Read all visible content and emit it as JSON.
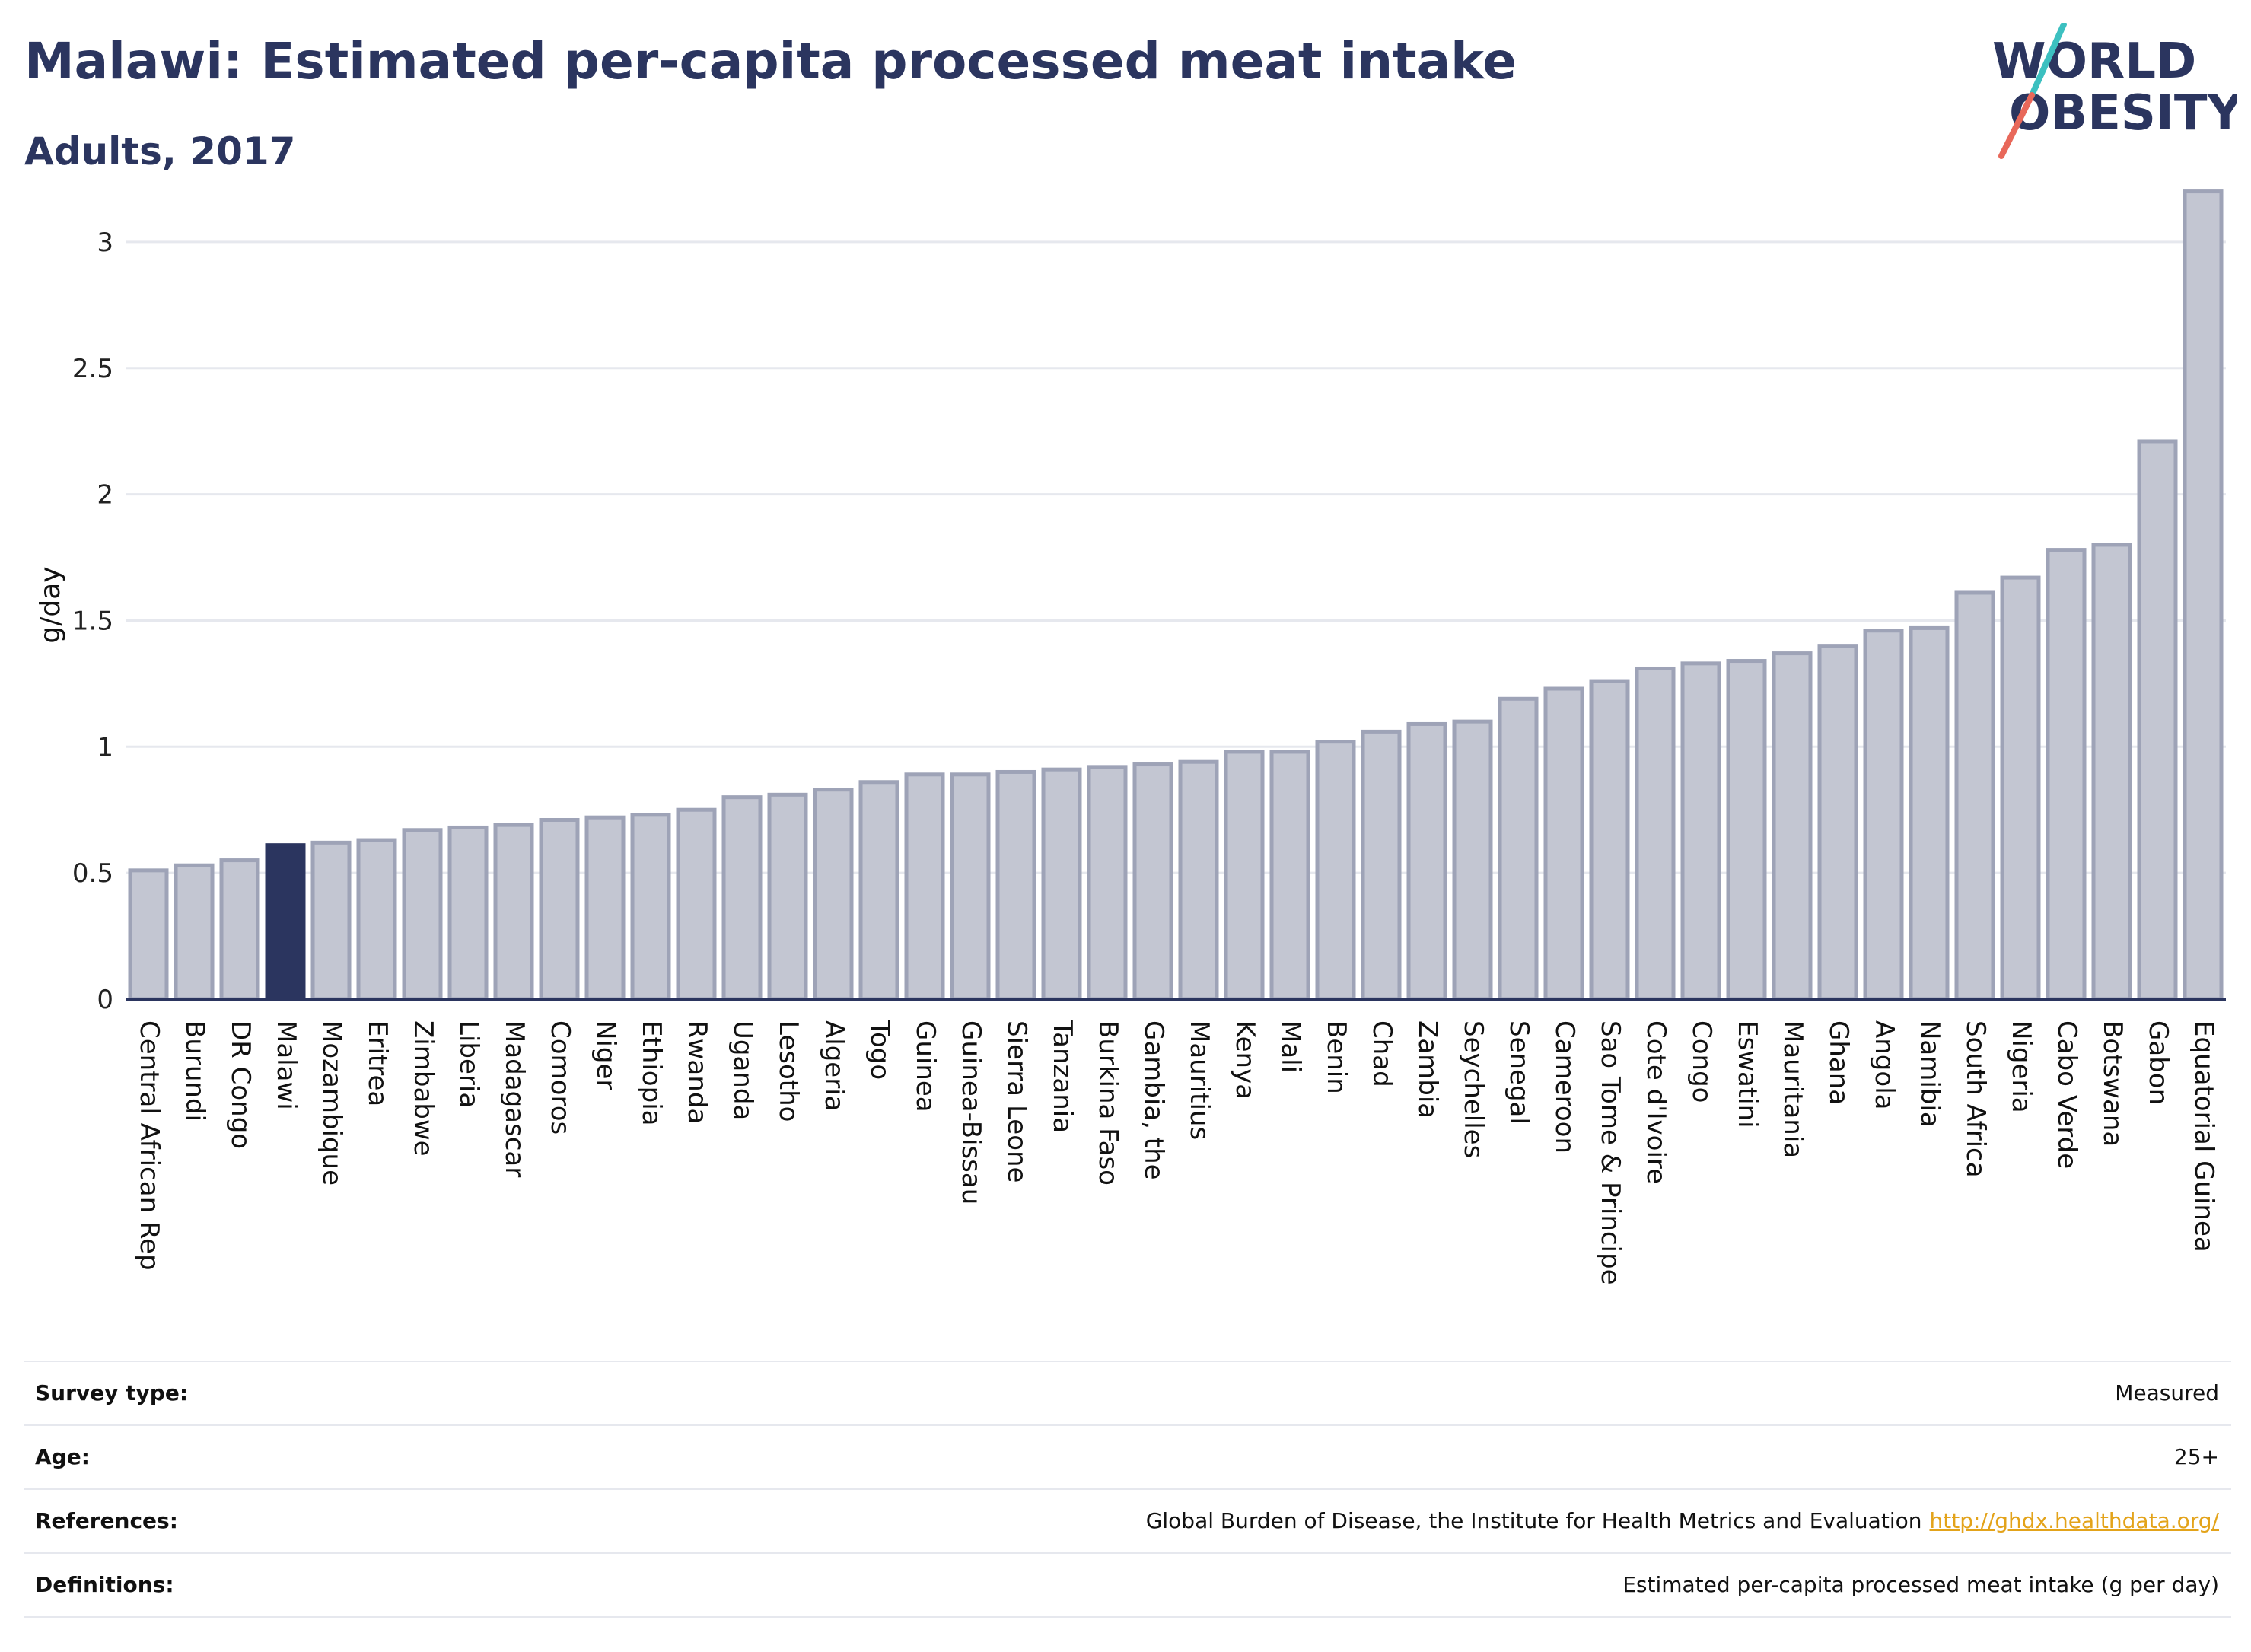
{
  "header": {
    "title": "Malawi: Estimated per-capita processed meat intake",
    "subtitle": "Adults, 2017"
  },
  "logo": {
    "line1": "WORLD",
    "line2": "OBESITY",
    "color_text": "#2b355f",
    "color_slash_top": "#3cc0c0",
    "color_slash_bottom": "#e8685a"
  },
  "chart_data": {
    "type": "bar",
    "ylabel": "g/day",
    "xlabel": "",
    "ylim": [
      0,
      3.25
    ],
    "yticks": [
      0,
      0.5,
      1,
      1.5,
      2,
      2.5,
      3
    ],
    "ytick_labels": [
      "0",
      "0.5",
      "1",
      "1.5",
      "2",
      "2.5",
      "3"
    ],
    "grid": true,
    "highlight": "Malawi",
    "colors": {
      "bar": "#c3c6d2",
      "bar_border": "#9ea3b7",
      "highlight": "#2b355f",
      "grid": "#e6e8ee",
      "axis": "#2b355f"
    },
    "categories": [
      "Central African Rep",
      "Burundi",
      "DR Congo",
      "Malawi",
      "Mozambique",
      "Eritrea",
      "Zimbabwe",
      "Liberia",
      "Madagascar",
      "Comoros",
      "Niger",
      "Ethiopia",
      "Rwanda",
      "Uganda",
      "Lesotho",
      "Algeria",
      "Togo",
      "Guinea",
      "Guinea-Bissau",
      "Sierra Leone",
      "Tanzania",
      "Burkina Faso",
      "Gambia, the",
      "Mauritius",
      "Kenya",
      "Mali",
      "Benin",
      "Chad",
      "Zambia",
      "Seychelles",
      "Senegal",
      "Cameroon",
      "Sao Tome & Principe",
      "Cote d'Ivoire",
      "Congo",
      "Eswatini",
      "Mauritania",
      "Ghana",
      "Angola",
      "Namibia",
      "South Africa",
      "Nigeria",
      "Cabo Verde",
      "Botswana",
      "Gabon",
      "Equatorial Guinea"
    ],
    "values": [
      0.51,
      0.53,
      0.55,
      0.61,
      0.62,
      0.63,
      0.67,
      0.68,
      0.69,
      0.71,
      0.72,
      0.73,
      0.75,
      0.8,
      0.81,
      0.83,
      0.86,
      0.89,
      0.89,
      0.9,
      0.91,
      0.92,
      0.93,
      0.94,
      0.98,
      0.98,
      1.02,
      1.06,
      1.09,
      1.1,
      1.19,
      1.23,
      1.26,
      1.31,
      1.33,
      1.34,
      1.37,
      1.4,
      1.46,
      1.47,
      1.61,
      1.67,
      1.78,
      1.8,
      2.21,
      3.2
    ]
  },
  "info": {
    "rows": [
      {
        "label": "Survey type:",
        "value": "Measured"
      },
      {
        "label": "Age:",
        "value": "25+"
      },
      {
        "label": "References:",
        "value": "Global Burden of Disease, the Institute for Health Metrics and Evaluation",
        "link": "http://ghdx.healthdata.org/"
      },
      {
        "label": "Definitions:",
        "value": "Estimated per-capita processed meat intake (g per day)"
      }
    ]
  }
}
